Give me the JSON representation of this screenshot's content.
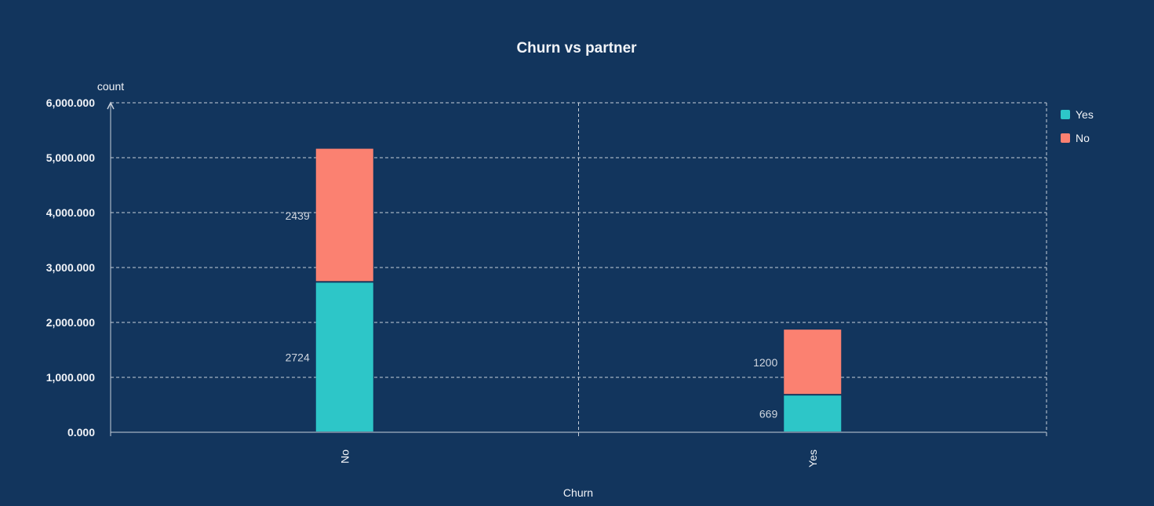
{
  "chart_data": {
    "type": "bar",
    "stacked": true,
    "title": "Churn vs partner",
    "xlabel": "Churn",
    "ylabel": "count",
    "categories": [
      "No",
      "Yes"
    ],
    "series": [
      {
        "name": "Yes",
        "color": "#2dc6c8",
        "values": [
          2724,
          669
        ]
      },
      {
        "name": "No",
        "color": "#fb8171",
        "values": [
          2439,
          1200
        ]
      }
    ],
    "ylim": [
      0,
      6000
    ],
    "yticks": [
      0,
      1000,
      2000,
      3000,
      4000,
      5000,
      6000
    ],
    "ytick_labels": [
      "0.000",
      "1,000.000",
      "2,000.000",
      "3,000.000",
      "4,000.000",
      "5,000.000",
      "6,000.000"
    ],
    "grid": true,
    "legend_position": "top-right"
  }
}
